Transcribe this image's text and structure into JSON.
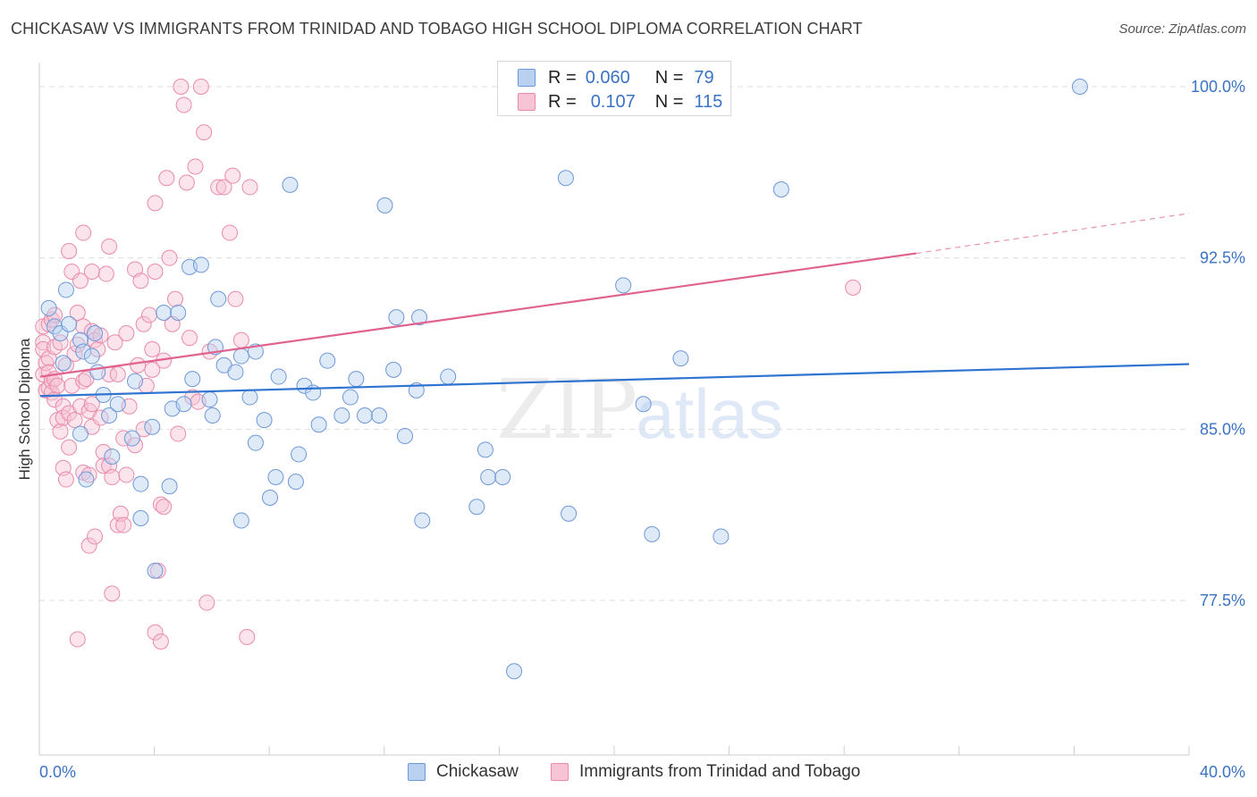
{
  "header": {
    "title": "CHICKASAW VS IMMIGRANTS FROM TRINIDAD AND TOBAGO HIGH SCHOOL DIPLOMA CORRELATION CHART",
    "source": "Source: ZipAtlas.com"
  },
  "legend": {
    "r_label": "R =",
    "n_label": "N =",
    "rows": [
      {
        "r": "0.060",
        "n": "79"
      },
      {
        "r": "0.107",
        "n": "115"
      }
    ]
  },
  "watermark": {
    "zip": "ZIP",
    "atlas": "atlas"
  },
  "colors": {
    "series1_fill": "#b9d0f1",
    "series1_stroke": "#6d98d8",
    "series1_line": "#2f74d0",
    "series2_fill": "#f7c4d5",
    "series2_stroke": "#e98aac",
    "series2_line": "#e0628f",
    "tick_label": "#3a72c4",
    "grid": "#dddddd"
  },
  "chart_data": {
    "type": "scatter",
    "title": "CHICKASAW VS IMMIGRANTS FROM TRINIDAD AND TOBAGO HIGH SCHOOL DIPLOMA CORRELATION CHART",
    "xlabel": "",
    "ylabel": "High School Diploma",
    "xlim": [
      0,
      40
    ],
    "ylim": [
      71.0,
      101.0
    ],
    "x_ticks": [
      0,
      40
    ],
    "x_tick_labels": [
      "0.0%",
      "40.0%"
    ],
    "y_ticks": [
      77.5,
      85.0,
      92.5,
      100.0
    ],
    "y_tick_labels": [
      "77.5%",
      "85.0%",
      "92.5%",
      "100.0%"
    ],
    "grid": true,
    "legend_position": "top-center",
    "series": [
      {
        "name": "Chickasaw",
        "R": 0.06,
        "N": 79,
        "trend": {
          "x0": 0.0,
          "y0": 86.45,
          "x1": 40.0,
          "y1": 87.85,
          "dashed_from": null
        },
        "points": [
          [
            0.3,
            90.3
          ],
          [
            0.5,
            89.5
          ],
          [
            0.7,
            89.2
          ],
          [
            0.8,
            87.9
          ],
          [
            0.9,
            91.1
          ],
          [
            1.0,
            89.6
          ],
          [
            1.4,
            88.9
          ],
          [
            1.5,
            88.4
          ],
          [
            1.8,
            88.2
          ],
          [
            1.9,
            89.2
          ],
          [
            1.4,
            84.8
          ],
          [
            1.6,
            82.8
          ],
          [
            2.0,
            87.5
          ],
          [
            2.2,
            86.5
          ],
          [
            2.4,
            85.6
          ],
          [
            2.5,
            83.8
          ],
          [
            2.7,
            86.1
          ],
          [
            3.3,
            87.1
          ],
          [
            3.2,
            84.6
          ],
          [
            3.5,
            81.1
          ],
          [
            3.5,
            82.6
          ],
          [
            3.9,
            85.1
          ],
          [
            4.0,
            78.8
          ],
          [
            4.3,
            90.1
          ],
          [
            4.5,
            82.5
          ],
          [
            4.6,
            85.9
          ],
          [
            4.8,
            90.1
          ],
          [
            5.0,
            86.1
          ],
          [
            5.2,
            92.1
          ],
          [
            5.3,
            87.2
          ],
          [
            5.6,
            92.2
          ],
          [
            5.9,
            86.3
          ],
          [
            6.0,
            85.6
          ],
          [
            6.2,
            90.7
          ],
          [
            6.1,
            88.6
          ],
          [
            6.4,
            87.8
          ],
          [
            6.8,
            87.5
          ],
          [
            7.0,
            88.2
          ],
          [
            7.0,
            81.0
          ],
          [
            7.3,
            86.4
          ],
          [
            7.5,
            88.4
          ],
          [
            7.5,
            84.4
          ],
          [
            7.8,
            85.4
          ],
          [
            8.0,
            82.0
          ],
          [
            8.2,
            82.9
          ],
          [
            8.3,
            87.3
          ],
          [
            8.7,
            95.7
          ],
          [
            8.9,
            82.7
          ],
          [
            9.0,
            83.9
          ],
          [
            9.2,
            86.9
          ],
          [
            9.5,
            86.6
          ],
          [
            9.7,
            85.2
          ],
          [
            10.0,
            88.0
          ],
          [
            10.5,
            85.6
          ],
          [
            10.8,
            86.4
          ],
          [
            11.0,
            87.2
          ],
          [
            11.3,
            85.6
          ],
          [
            11.8,
            85.6
          ],
          [
            12.0,
            94.8
          ],
          [
            12.3,
            87.6
          ],
          [
            12.4,
            89.9
          ],
          [
            12.7,
            84.7
          ],
          [
            13.1,
            86.7
          ],
          [
            13.2,
            89.9
          ],
          [
            13.3,
            81.0
          ],
          [
            14.2,
            87.3
          ],
          [
            15.2,
            81.6
          ],
          [
            15.5,
            84.1
          ],
          [
            15.6,
            82.9
          ],
          [
            16.1,
            82.9
          ],
          [
            16.5,
            74.4
          ],
          [
            18.3,
            96.0
          ],
          [
            18.4,
            81.3
          ],
          [
            20.3,
            91.3
          ],
          [
            21.0,
            86.1
          ],
          [
            21.3,
            80.4
          ],
          [
            22.3,
            88.1
          ],
          [
            23.7,
            80.3
          ],
          [
            25.8,
            95.5
          ],
          [
            36.2,
            100.0
          ]
        ]
      },
      {
        "name": "Immigrants from Trinidad and Tobago",
        "R": 0.107,
        "N": 115,
        "trend": {
          "x0": 0.0,
          "y0": 87.3,
          "x1": 30.5,
          "y1": 92.7,
          "dashed_from": 30.5,
          "dashed_to_x": 40.0,
          "dashed_to_y": 94.45
        },
        "points": [
          [
            0.1,
            89.5
          ],
          [
            0.1,
            88.8
          ],
          [
            0.1,
            88.5
          ],
          [
            0.1,
            87.4
          ],
          [
            0.2,
            87.9
          ],
          [
            0.2,
            86.7
          ],
          [
            0.3,
            89.6
          ],
          [
            0.3,
            88.1
          ],
          [
            0.3,
            87.5
          ],
          [
            0.3,
            86.8
          ],
          [
            0.4,
            89.8
          ],
          [
            0.4,
            87.1
          ],
          [
            0.4,
            86.6
          ],
          [
            0.5,
            87.2
          ],
          [
            0.5,
            88.6
          ],
          [
            0.5,
            86.3
          ],
          [
            0.5,
            90.0
          ],
          [
            0.6,
            85.4
          ],
          [
            0.6,
            86.9
          ],
          [
            0.7,
            88.8
          ],
          [
            0.7,
            84.9
          ],
          [
            0.8,
            86.0
          ],
          [
            0.8,
            85.5
          ],
          [
            0.8,
            83.3
          ],
          [
            0.9,
            87.8
          ],
          [
            0.9,
            82.8
          ],
          [
            1.0,
            85.7
          ],
          [
            1.0,
            84.2
          ],
          [
            1.0,
            92.8
          ],
          [
            1.1,
            91.9
          ],
          [
            1.1,
            86.9
          ],
          [
            1.2,
            88.3
          ],
          [
            1.2,
            85.4
          ],
          [
            1.3,
            90.1
          ],
          [
            1.3,
            88.7
          ],
          [
            1.3,
            75.8
          ],
          [
            1.4,
            86.0
          ],
          [
            1.4,
            91.5
          ],
          [
            1.5,
            93.6
          ],
          [
            1.5,
            89.5
          ],
          [
            1.5,
            87.1
          ],
          [
            1.5,
            83.1
          ],
          [
            1.6,
            87.2
          ],
          [
            1.7,
            85.8
          ],
          [
            1.7,
            83.0
          ],
          [
            1.7,
            79.9
          ],
          [
            1.8,
            91.9
          ],
          [
            1.8,
            89.3
          ],
          [
            1.8,
            86.1
          ],
          [
            1.8,
            85.1
          ],
          [
            1.9,
            88.9
          ],
          [
            1.9,
            80.3
          ],
          [
            2.0,
            88.5
          ],
          [
            2.1,
            89.1
          ],
          [
            2.1,
            85.5
          ],
          [
            2.2,
            84.0
          ],
          [
            2.2,
            83.4
          ],
          [
            2.3,
            91.8
          ],
          [
            2.4,
            93.0
          ],
          [
            2.4,
            87.4
          ],
          [
            2.4,
            83.4
          ],
          [
            2.5,
            82.9
          ],
          [
            2.5,
            77.8
          ],
          [
            2.6,
            88.8
          ],
          [
            2.7,
            87.4
          ],
          [
            2.7,
            80.8
          ],
          [
            2.8,
            81.3
          ],
          [
            2.9,
            84.6
          ],
          [
            3.0,
            83.0
          ],
          [
            3.0,
            89.2
          ],
          [
            3.1,
            86.0
          ],
          [
            3.3,
            84.3
          ],
          [
            3.3,
            92.0
          ],
          [
            3.4,
            87.8
          ],
          [
            3.5,
            91.5
          ],
          [
            3.6,
            89.6
          ],
          [
            3.6,
            85.0
          ],
          [
            3.7,
            86.9
          ],
          [
            3.8,
            90.0
          ],
          [
            3.9,
            87.6
          ],
          [
            4.0,
            76.1
          ],
          [
            4.0,
            94.9
          ],
          [
            4.0,
            91.9
          ],
          [
            4.1,
            78.8
          ],
          [
            4.2,
            81.7
          ],
          [
            4.2,
            75.7
          ],
          [
            4.3,
            88.0
          ],
          [
            4.4,
            96.0
          ],
          [
            4.5,
            92.5
          ],
          [
            4.6,
            89.6
          ],
          [
            4.7,
            90.7
          ],
          [
            4.8,
            84.8
          ],
          [
            4.9,
            100.0
          ],
          [
            5.0,
            99.2
          ],
          [
            5.1,
            95.8
          ],
          [
            5.2,
            89.0
          ],
          [
            5.3,
            86.4
          ],
          [
            5.4,
            96.5
          ],
          [
            5.5,
            86.2
          ],
          [
            5.6,
            100.0
          ],
          [
            5.7,
            98.0
          ],
          [
            5.8,
            77.4
          ],
          [
            5.9,
            88.4
          ],
          [
            6.2,
            95.6
          ],
          [
            6.4,
            95.6
          ],
          [
            6.6,
            93.6
          ],
          [
            6.7,
            96.1
          ],
          [
            6.8,
            90.7
          ],
          [
            7.0,
            88.9
          ],
          [
            7.2,
            75.9
          ],
          [
            7.3,
            95.6
          ],
          [
            4.3,
            81.6
          ],
          [
            3.9,
            88.5
          ],
          [
            2.9,
            80.8
          ],
          [
            28.3,
            91.2
          ]
        ]
      }
    ]
  },
  "bottom_legend": {
    "items": [
      "Chickasaw",
      "Immigrants from Trinidad and Tobago"
    ]
  }
}
